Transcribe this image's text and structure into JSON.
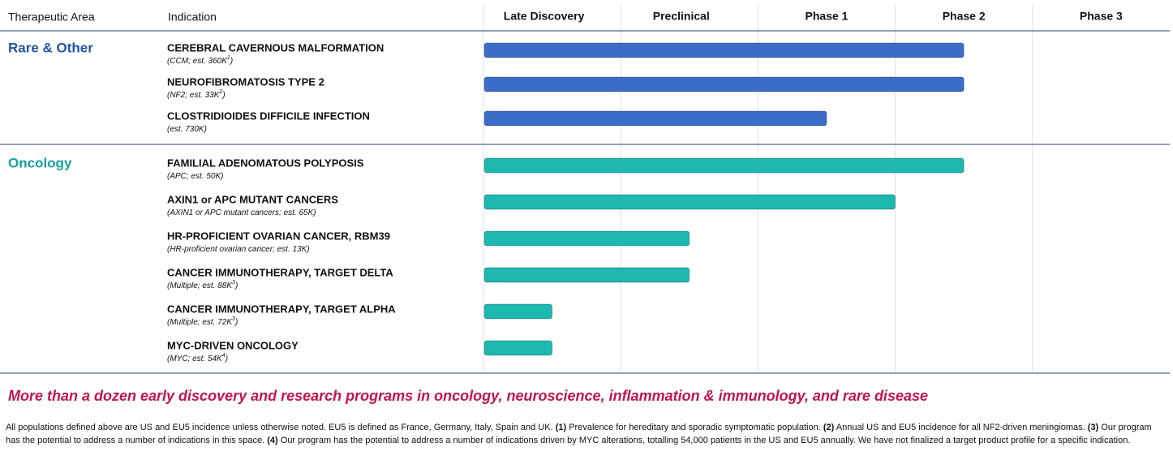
{
  "chart_data": {
    "type": "pipeline",
    "area_header": "Therapeutic Area",
    "indication_header": "Indication",
    "phases": [
      "Late Discovery",
      "Preclinical",
      "Phase 1",
      "Phase 2",
      "Phase 3"
    ],
    "groups": [
      {
        "name": "Rare & Other",
        "color": "#3a6cc8",
        "label_color": "#1f56a5",
        "rows": [
          {
            "title": "CEREBRAL CAVERNOUS MALFORMATION",
            "note": [
              "(CCM; est. 360K",
              "1",
              ")"
            ],
            "value": 3.5
          },
          {
            "title": "NEUROFIBROMATOSIS TYPE 2",
            "note": [
              "(NF2; est. 33K",
              "2",
              ")"
            ],
            "value": 3.5
          },
          {
            "title": "CLOSTRIDIOIDES DIFFICILE INFECTION",
            "note": [
              "(est. 730K)"
            ],
            "value": 2.5
          }
        ]
      },
      {
        "name": "Oncology",
        "color": "#1db8b0",
        "label_color": "#17a09a",
        "rows": [
          {
            "title": "FAMILIAL ADENOMATOUS POLYPOSIS",
            "note": [
              "(APC; est. 50K)"
            ],
            "value": 3.5
          },
          {
            "title": "AXIN1 or APC MUTANT CANCERS",
            "note": [
              "(AXIN1 or APC mutant cancers; est. 65K)"
            ],
            "value": 3.0
          },
          {
            "title": "HR-PROFICIENT OVARIAN CANCER, RBM39",
            "note": [
              "(HR-proficient ovarian cancer; est. 13K)"
            ],
            "value": 1.5
          },
          {
            "title": "CANCER IMMUNOTHERAPY, TARGET DELTA",
            "note": [
              "(Multiple; est. 88K",
              "3",
              ")"
            ],
            "value": 1.5
          },
          {
            "title": "CANCER IMMUNOTHERAPY, TARGET ALPHA",
            "note": [
              "(Multiple; est. 72K",
              "3",
              ")"
            ],
            "value": 0.5
          },
          {
            "title": "MYC-DRIVEN ONCOLOGY",
            "note": [
              "(MYC; est. 54K",
              "4",
              ")"
            ],
            "value": 0.5
          }
        ]
      }
    ],
    "tagline": "More than a dozen early discovery and research programs in oncology, neuroscience, inflammation & immunology, and rare disease",
    "footnote": [
      [
        {
          "text": "All populations defined above are US and EU5 incidence unless otherwise noted. EU5 is defined as France, Germany, Italy, Spain and UK. "
        },
        {
          "text": "(1)",
          "bold": true
        },
        {
          "text": " Prevalence for hereditary and sporadic symptomatic population. "
        },
        {
          "text": "(2)",
          "bold": true
        },
        {
          "text": " Annual US and EU5 incidence for all NF2-driven meningiomas. "
        },
        {
          "text": "(3)",
          "bold": true
        },
        {
          "text": " Our program"
        }
      ],
      [
        {
          "text": "has the potential to address a number of indications in this space. "
        },
        {
          "text": "(4)",
          "bold": true
        },
        {
          "text": " Our program has the potential to address a number of indications driven by MYC alterations, totalling 54,000 patients in the US and EU5 annually. We have not finalized a target product profile for a specific indication."
        }
      ]
    ]
  }
}
